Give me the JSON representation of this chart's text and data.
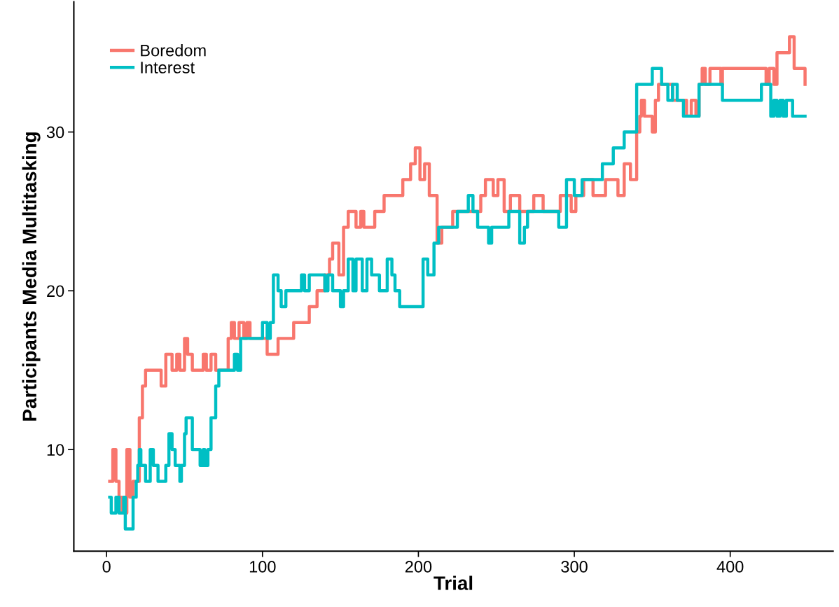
{
  "chart_data": {
    "type": "step",
    "xlabel": "Trial",
    "ylabel": "Participants Media Multitasking",
    "xlim": [
      -21,
      466
    ],
    "ylim": [
      3.6,
      38.2
    ],
    "xticks": [
      0,
      100,
      200,
      300,
      400
    ],
    "yticks": [
      10,
      20,
      30
    ],
    "grid": false,
    "legend": "top left",
    "series": [
      {
        "name": "Boredom",
        "color": "#f8766d",
        "x": [
          2,
          4,
          6,
          8,
          10,
          13,
          15,
          17,
          21,
          23,
          25,
          35,
          38,
          42,
          45,
          47,
          50,
          52,
          55,
          62,
          64,
          67,
          70,
          78,
          80,
          82,
          85,
          88,
          90,
          92,
          103,
          110,
          120,
          130,
          135,
          140,
          143,
          145,
          149,
          152,
          155,
          160,
          163,
          165,
          172,
          178,
          190,
          195,
          198,
          201,
          204,
          207,
          212,
          215,
          222,
          240,
          243,
          248,
          251,
          255,
          259,
          265,
          274,
          280,
          291,
          298,
          301,
          306,
          312,
          320,
          328,
          332,
          336,
          340,
          342,
          343,
          345,
          350,
          352,
          354,
          363,
          372,
          375,
          378,
          380,
          382,
          384,
          387,
          394,
          395,
          423,
          425,
          428,
          430,
          438,
          441,
          448
        ],
        "values": [
          8,
          10,
          8,
          7,
          6,
          10,
          7,
          8,
          12,
          14,
          15,
          14,
          16,
          15,
          16,
          15,
          17,
          16,
          15,
          16,
          15,
          16,
          15,
          17,
          18,
          17,
          18,
          17,
          18,
          17,
          16,
          17,
          18,
          19,
          20,
          21,
          22,
          23,
          21,
          24,
          25,
          24,
          25,
          24,
          25,
          26,
          27,
          28,
          29,
          27,
          28,
          26,
          23,
          24,
          25,
          26,
          27,
          26,
          27,
          25,
          26,
          25,
          26,
          25,
          26,
          25,
          26,
          27,
          26,
          27,
          26,
          28,
          27,
          30,
          31,
          32,
          31,
          30,
          32,
          33,
          32,
          31,
          32,
          31,
          33,
          34,
          33,
          34,
          33,
          34,
          33,
          34,
          33,
          35,
          36,
          34,
          33
        ]
      },
      {
        "name": "Interest",
        "color": "#00bfc4",
        "x": [
          2,
          3,
          6,
          8,
          11,
          12,
          15,
          17,
          19,
          20,
          21,
          22,
          25,
          28,
          30,
          33,
          38,
          40,
          42,
          44,
          47,
          48,
          50,
          51,
          55,
          60,
          62,
          63,
          65,
          67,
          70,
          72,
          82,
          84,
          86,
          100,
          103,
          105,
          107,
          110,
          112,
          115,
          125,
          127,
          130,
          140,
          142,
          145,
          150,
          152,
          155,
          158,
          160,
          164,
          167,
          170,
          175,
          180,
          183,
          185,
          188,
          200,
          203,
          206,
          210,
          213,
          220,
          225,
          232,
          235,
          238,
          245,
          247,
          258,
          265,
          268,
          270,
          290,
          295,
          300,
          305,
          318,
          325,
          332,
          340,
          350,
          356,
          360,
          363,
          366,
          370,
          380,
          395,
          420,
          426,
          428,
          430,
          432,
          434,
          436,
          440,
          448
        ],
        "values": [
          7,
          6,
          7,
          6,
          7,
          5,
          5,
          7,
          8,
          9,
          10,
          9,
          8,
          10,
          9,
          8,
          9,
          11,
          10,
          9,
          8,
          9,
          11,
          12,
          10,
          9,
          10,
          9,
          10,
          12,
          14,
          15,
          16,
          15,
          17,
          18,
          17,
          18,
          21,
          20,
          19,
          20,
          21,
          20,
          21,
          20,
          21,
          20,
          19,
          20,
          22,
          20,
          22,
          20,
          22,
          21,
          20,
          22,
          21,
          20,
          19,
          19,
          22,
          21,
          23,
          24,
          24,
          25,
          26,
          25,
          24,
          23,
          24,
          25,
          23,
          24,
          25,
          24,
          27,
          26,
          27,
          28,
          29,
          30,
          33,
          34,
          33,
          32,
          33,
          32,
          31,
          33,
          32,
          33,
          31,
          32,
          31,
          32,
          31,
          32,
          31,
          31
        ]
      }
    ]
  }
}
